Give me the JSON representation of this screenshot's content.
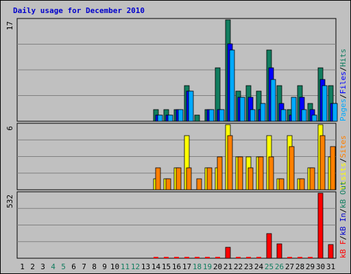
{
  "colors": {
    "hits": "#117d5f",
    "files": "#0000ff",
    "pages": "#00aaff",
    "visits": "#ffff00",
    "sites": "#ff8000",
    "kb_f": "#ff0000",
    "kb_in": "#0000cc",
    "kb_out": "#117d5f",
    "slash": "#000000",
    "weekday": "#000000",
    "weekend": "#117d5f",
    "title": "#0000cc",
    "panel_bg": "#c0c0c0"
  },
  "chart_data": {
    "type": "bar",
    "title": "Daily usage for December 2010",
    "days": [
      "1",
      "2",
      "3",
      "4",
      "5",
      "6",
      "7",
      "8",
      "9",
      "10",
      "11",
      "12",
      "13",
      "14",
      "15",
      "16",
      "17",
      "18",
      "19",
      "20",
      "21",
      "22",
      "23",
      "24",
      "25",
      "26",
      "27",
      "28",
      "29",
      "30",
      "31"
    ],
    "weekend_days": [
      "4",
      "5",
      "11",
      "12",
      "18",
      "19",
      "25",
      "26"
    ],
    "grid": true,
    "panels": [
      {
        "ymax_label": "17",
        "ymax": 17,
        "legend": [
          {
            "text": "Pages",
            "color": "pages"
          },
          {
            "text": "/",
            "color": "slash"
          },
          {
            "text": "Files",
            "color": "files"
          },
          {
            "text": "/",
            "color": "slash"
          },
          {
            "text": "Hits",
            "color": "hits"
          }
        ],
        "series": [
          {
            "name": "Hits",
            "color": "hits",
            "values": [
              0,
              0,
              0,
              0,
              0,
              0,
              0,
              0,
              0,
              0,
              0,
              0,
              0,
              2,
              2,
              2,
              6,
              1,
              2,
              9,
              17,
              5,
              6,
              5,
              12,
              6,
              2,
              6,
              3,
              9,
              6
            ]
          },
          {
            "name": "Files",
            "color": "files",
            "values": [
              0,
              0,
              0,
              0,
              0,
              0,
              0,
              0,
              0,
              0,
              0,
              0,
              0,
              1,
              1,
              2,
              5,
              0,
              2,
              2,
              13,
              4,
              4,
              2,
              9,
              3,
              1,
              4,
              2,
              7,
              3
            ]
          },
          {
            "name": "Pages",
            "color": "pages",
            "values": [
              0,
              0,
              0,
              0,
              0,
              0,
              0,
              0,
              0,
              0,
              0,
              0,
              0,
              1,
              1,
              2,
              5,
              0,
              2,
              2,
              12,
              4,
              2,
              3,
              7,
              2,
              4,
              2,
              1,
              6,
              3
            ]
          }
        ]
      },
      {
        "ymax_label": "6",
        "ymax": 6,
        "legend": [
          {
            "text": "Visits",
            "color": "visits"
          },
          {
            "text": "/",
            "color": "slash"
          },
          {
            "text": "Sites",
            "color": "sites"
          }
        ],
        "series": [
          {
            "name": "Visits",
            "color": "visits",
            "values": [
              0,
              0,
              0,
              0,
              0,
              0,
              0,
              0,
              0,
              0,
              0,
              0,
              0,
              1,
              1,
              2,
              5,
              0,
              2,
              2,
              6,
              3,
              3,
              3,
              5,
              1,
              5,
              1,
              2,
              6,
              3
            ]
          },
          {
            "name": "Sites",
            "color": "sites",
            "values": [
              0,
              0,
              0,
              0,
              0,
              0,
              0,
              0,
              0,
              0,
              0,
              0,
              0,
              2,
              1,
              2,
              2,
              1,
              2,
              3,
              5,
              3,
              2,
              3,
              3,
              1,
              4,
              1,
              2,
              5,
              4
            ]
          }
        ]
      },
      {
        "ymax_label": "532",
        "ymax": 532,
        "legend": [
          {
            "text": "kB F",
            "color": "kb_f"
          },
          {
            "text": "/",
            "color": "slash"
          },
          {
            "text": "kB In",
            "color": "kb_in"
          },
          {
            "text": "/",
            "color": "slash"
          },
          {
            "text": "kB Out",
            "color": "kb_out"
          }
        ],
        "series": [
          {
            "name": "kB F",
            "color": "kb_f",
            "values": [
              0,
              0,
              0,
              0,
              0,
              0,
              0,
              0,
              0,
              0,
              0,
              0,
              0,
              5,
              5,
              5,
              5,
              5,
              5,
              5,
              90,
              5,
              10,
              5,
              200,
              120,
              5,
              5,
              5,
              532,
              110
            ]
          }
        ]
      }
    ]
  }
}
